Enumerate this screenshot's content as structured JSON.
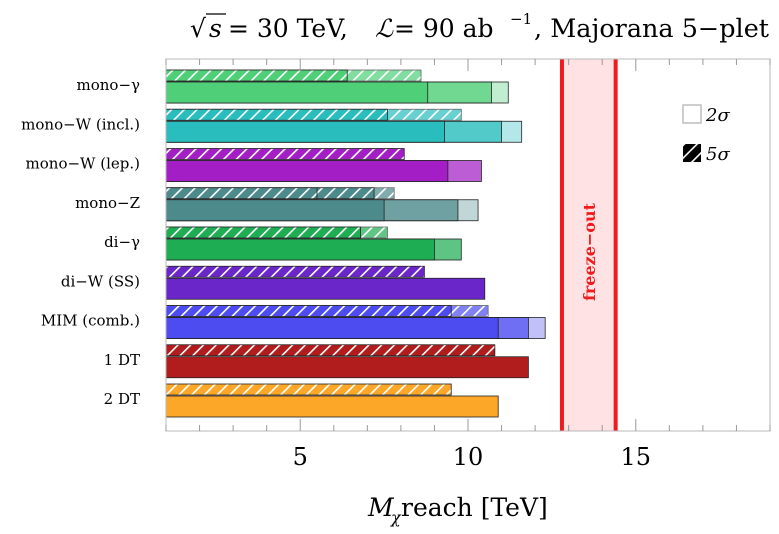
{
  "chart_data": {
    "type": "bar",
    "orientation": "horizontal",
    "title": {
      "sqrt_symbol": "√",
      "sqrt_arg": "s",
      "energy": " = 30 TeV, ",
      "lumi_symbol": "ℒ",
      "lumi_value": " = 90 ab",
      "lumi_exp": "−1",
      "model": ", Majorana 5−plet"
    },
    "xlabel": {
      "symbol": "M",
      "subscript": "χ",
      "text": " reach [TeV]"
    },
    "xlim": [
      1,
      19
    ],
    "xticks": [
      {
        "value": 5,
        "label": "5"
      },
      {
        "value": 10,
        "label": "10"
      },
      {
        "value": 15,
        "label": "15"
      }
    ],
    "freeze_out": {
      "label": "freeze−out",
      "min": 12.8,
      "max": 14.4,
      "line_color": "#ee1c1c",
      "band_color": "#ffe2e4"
    },
    "legend": {
      "position": "top-right",
      "entries": [
        {
          "style": "solid",
          "label": "2σ"
        },
        {
          "style": "hatched",
          "label": "5σ"
        }
      ]
    },
    "channels": [
      {
        "label": "mono−γ",
        "color": "#4ecf78",
        "reach_5sigma": [
          6.4,
          8.6
        ],
        "reach_2sigma": [
          8.8,
          10.7,
          11.2
        ]
      },
      {
        "label": "mono−W (incl.)",
        "color": "#29bdbd",
        "reach_5sigma": [
          7.6,
          9.8
        ],
        "reach_2sigma": [
          9.3,
          11.0,
          11.6
        ]
      },
      {
        "label": "mono−W (lep.)",
        "color": "#a31fc5",
        "reach_5sigma": [
          8.1
        ],
        "reach_2sigma": [
          9.4,
          10.4
        ]
      },
      {
        "label": "mono−Z",
        "color": "#4d8a8c",
        "reach_5sigma": [
          5.5,
          7.2,
          7.8
        ],
        "reach_2sigma": [
          7.5,
          9.7,
          10.3
        ]
      },
      {
        "label": "di−γ",
        "color": "#1fad53",
        "reach_5sigma": [
          6.8,
          7.6
        ],
        "reach_2sigma": [
          9.0,
          9.8
        ]
      },
      {
        "label": "di−W (SS)",
        "color": "#6a26c8",
        "reach_5sigma": [
          8.7
        ],
        "reach_2sigma": [
          10.5
        ]
      },
      {
        "label": "MIM (comb.)",
        "color": "#4c4cf0",
        "reach_5sigma": [
          9.5,
          10.6
        ],
        "reach_2sigma": [
          10.9,
          11.8,
          12.3
        ]
      },
      {
        "label": "1 DT",
        "color": "#b11d1d",
        "reach_5sigma": [
          10.8
        ],
        "reach_2sigma": [
          11.8
        ]
      },
      {
        "label": "2 DT",
        "color": "#fca728",
        "reach_5sigma": [
          9.5
        ],
        "reach_2sigma": [
          10.9
        ]
      }
    ]
  }
}
